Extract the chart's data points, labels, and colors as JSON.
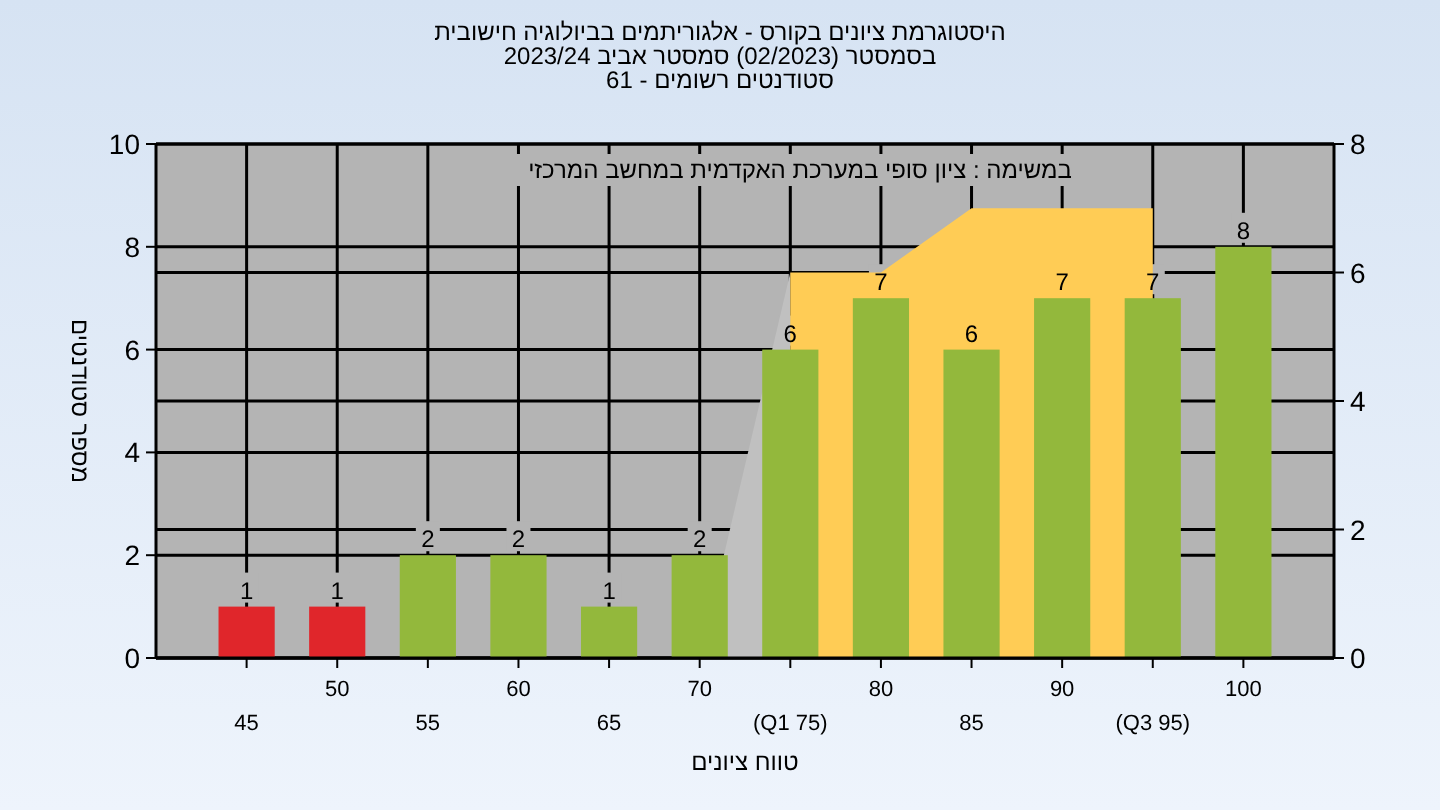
{
  "chart_data": {
    "type": "bar",
    "title": "היסטוגרמת ציונים בקורס - אלגוריתמים בביולוגיה חישובית",
    "subtitle": "בסמסטר  (02/2023)  סמסטר אביב 2023/24\nסטודנטים רשומים - 61",
    "xlabel": "טווח ציונים",
    "ylabel": "מספר סטודנטים",
    "annotations": [
      "במשימה : ציון סופי במערכת האקדמית במחשב המרכזי"
    ],
    "categories": [
      "45",
      "50",
      "55",
      "60",
      "65",
      "70",
      "(Q1 75)",
      "80",
      "85",
      "90",
      "(Q3 95)",
      "100"
    ],
    "series": [
      {
        "type": "area",
        "axis": "y2",
        "color": "#c0c0c0",
        "x": [
          "70",
          "(Q1 75)"
        ],
        "values": [
          0,
          6
        ]
      },
      {
        "type": "area",
        "axis": "y2",
        "color": "#ffcc55",
        "x": [
          "(Q1 75)",
          "80",
          "85",
          "(Q3 95)"
        ],
        "values": [
          6,
          6,
          7,
          7
        ]
      },
      {
        "colors": [
          "#e0262b",
          "#e0262b",
          "#93b83c",
          "#93b83c",
          "#93b83c",
          "#93b83c",
          "#93b83c",
          "#93b83c",
          "#93b83c",
          "#93b83c",
          "#93b83c",
          "#93b83c"
        ],
        "values": [
          1,
          1,
          2,
          2,
          1,
          2,
          6,
          7,
          6,
          7,
          7,
          8
        ],
        "value_labels": [
          "1",
          "1",
          "2",
          "2",
          "1",
          "2",
          "6",
          "7",
          "6",
          "7",
          "7",
          "8"
        ]
      }
    ],
    "ylim": [
      0,
      10
    ],
    "yticks": [
      0,
      2,
      4,
      6,
      8,
      10
    ],
    "y2lim": [
      0,
      8
    ],
    "y2ticks": [
      0,
      2,
      4,
      6,
      8
    ],
    "grid": true
  }
}
